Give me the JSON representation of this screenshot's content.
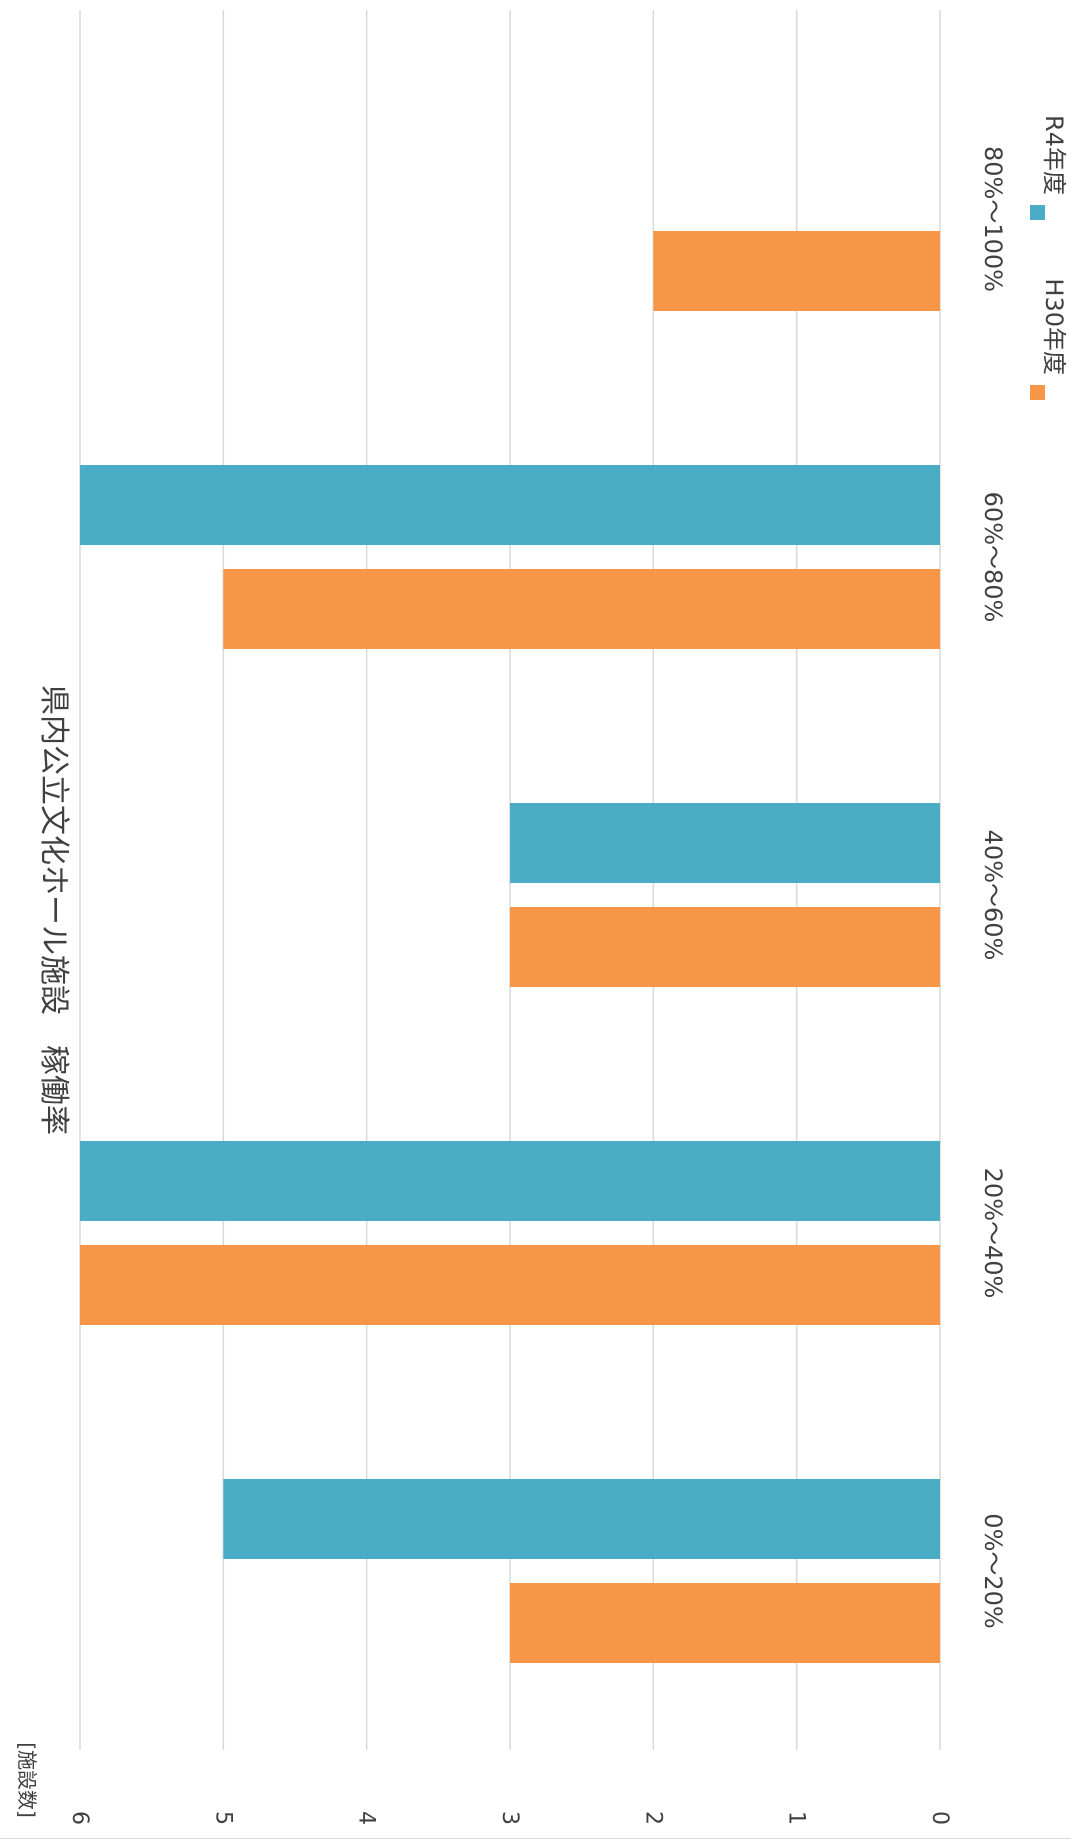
{
  "chart_data": {
    "type": "bar",
    "orientation": "rotated-90-clockwise",
    "title": "県内公立文化ホール施設　稼働率",
    "ylabel": "[施設数]",
    "xlabel": "",
    "categories": [
      "0%〜20%",
      "20%〜40%",
      "40%〜60%",
      "60%〜80%",
      "80%〜100%"
    ],
    "series": [
      {
        "name": "H30年度",
        "color": "#F79646",
        "values": [
          3,
          6,
          3,
          5,
          2
        ]
      },
      {
        "name": "R4年度",
        "color": "#4BACC6",
        "values": [
          5,
          6,
          3,
          6,
          0
        ]
      }
    ],
    "ylim": [
      0,
      6
    ],
    "yticks": [
      "0",
      "1",
      "2",
      "3",
      "4",
      "5",
      "6"
    ],
    "grid": true,
    "legend": "top-right"
  }
}
